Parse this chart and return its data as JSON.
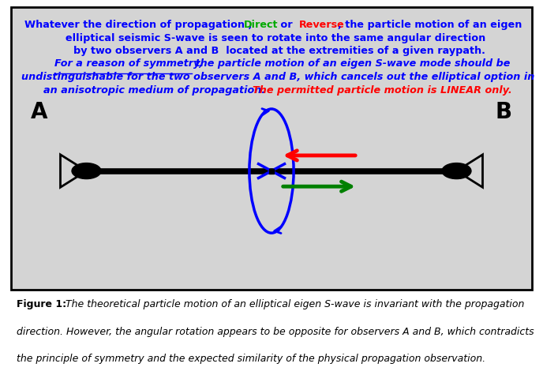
{
  "bg_color": "#d4d4d4",
  "line1a": "Whatever the direction of propagation , ",
  "line1b": "Direct",
  "line1c": " or ",
  "line1d": "Reverse",
  "line1e": ", the particle motion of an eigen",
  "line2": "elliptical seismic S-wave is seen to rotate into the same angular direction",
  "line3": "by two observers A and B  located at the extremities of a given raypath.",
  "line4a": "For a reason of symmetry,",
  "line4b": " the particle motion of an eigen S-wave mode should be",
  "line5": "undistinguishable for the two observers A and B, which cancels out the elliptical option in",
  "line6a": "an anisotropic medium of propagation. ",
  "line6b": "The permitted particle motion is LINEAR only.",
  "caption_bold": "Figure 1: ",
  "caption_line1": "The theoretical particle motion of an elliptical eigen S-wave is invariant with the propagation",
  "caption_line2": "direction. However, the angular rotation appears to be opposite for observers A and B, which contradicts",
  "caption_line3": "the principle of symmetry and the expected similarity of the physical propagation observation.",
  "color_blue": "#0000ff",
  "color_green": "#00aa00",
  "color_red": "#ff0000",
  "color_black": "#000000",
  "fs_title": 9.2,
  "fs_label": 18,
  "fs_caption": 9.0
}
